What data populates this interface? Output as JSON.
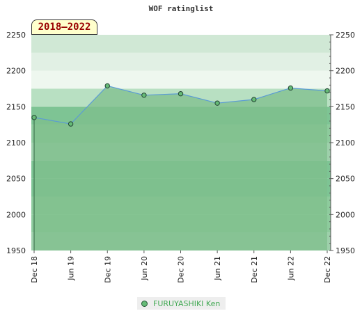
{
  "chart_data": {
    "type": "area",
    "title": "WOF ratinglist",
    "range_label": "2018–2022",
    "x": [
      "Dec 18",
      "Jun 19",
      "Dec 19",
      "Jun 20",
      "Dec 20",
      "Jun 21",
      "Dec 21",
      "Jun 22",
      "Dec 22"
    ],
    "series": [
      {
        "name": "FURUYASHIKI Ken",
        "values": [
          2135,
          2126,
          2179,
          2166,
          2168,
          2155,
          2160,
          2176,
          2172
        ]
      }
    ],
    "ylim": [
      1950,
      2250
    ],
    "yticks": [
      1950,
      2000,
      2050,
      2100,
      2150,
      2200,
      2250
    ],
    "y_axis_both_sides": true,
    "legend_position": "bottom-center",
    "colors": {
      "line": "#5b9bd5",
      "marker": "#66bb77",
      "area": "#7fbf8c",
      "legend_text": "#44aa55"
    }
  }
}
